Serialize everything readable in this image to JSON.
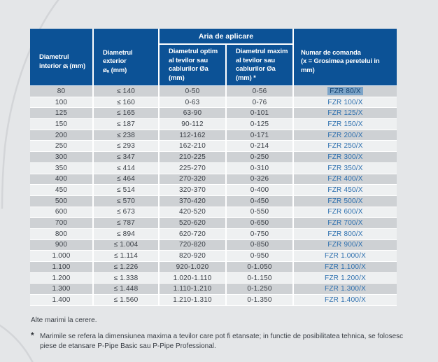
{
  "colors": {
    "page_bg": "#e4e6e8",
    "header_bg": "#0c5296",
    "row_shade": "#ced1d4",
    "row_light": "#eef0f1",
    "link_blue": "#2d6fae",
    "sel_bg": "#7ca4c8",
    "sel_text": "#12406e",
    "body_text": "#3a3f46",
    "curve": "#d3d5d8"
  },
  "table": {
    "headers": {
      "span_label": "Aria de aplicare",
      "inner_diameter": {
        "lines": [
          "Diametrul",
          "interior øᵢ (mm)"
        ]
      },
      "outer_diameter": {
        "lines": [
          "Diametrul",
          "exterior",
          "øₐ (mm)"
        ]
      },
      "optimal_diameter": {
        "lines": [
          "Diametrul optim",
          "al tevilor sau",
          "cablurilor Øa",
          "(mm)"
        ]
      },
      "maximal_diameter": {
        "lines": [
          "Diametrul maxim",
          "al tevilor sau",
          "cablurilor Øa",
          "(mm) *"
        ]
      },
      "order_number": {
        "lines": [
          "Numar de comanda",
          "(x = Grosimea peretelui in",
          "mm)"
        ]
      }
    },
    "rows": [
      {
        "inner": "80",
        "outer": "≤ 140",
        "optimal": "0-50",
        "maximal": "0-56",
        "order": "FZR 80/X",
        "selected": true
      },
      {
        "inner": "100",
        "outer": "≤ 160",
        "optimal": "0-63",
        "maximal": "0-76",
        "order": "FZR 100/X"
      },
      {
        "inner": "125",
        "outer": "≤ 165",
        "optimal": "63-90",
        "maximal": "0-101",
        "order": "FZR 125/X"
      },
      {
        "inner": "150",
        "outer": "≤ 187",
        "optimal": "90-112",
        "maximal": "0-125",
        "order": "FZR 150/X"
      },
      {
        "inner": "200",
        "outer": "≤ 238",
        "optimal": "112-162",
        "maximal": "0-171",
        "order": "FZR 200/X"
      },
      {
        "inner": "250",
        "outer": "≤ 293",
        "optimal": "162-210",
        "maximal": "0-214",
        "order": "FZR 250/X"
      },
      {
        "inner": "300",
        "outer": "≤ 347",
        "optimal": "210-225",
        "maximal": "0-250",
        "order": "FZR 300/X"
      },
      {
        "inner": "350",
        "outer": "≤ 414",
        "optimal": "225-270",
        "maximal": "0-310",
        "order": "FZR 350/X"
      },
      {
        "inner": "400",
        "outer": "≤ 464",
        "optimal": "270-320",
        "maximal": "0-326",
        "order": "FZR 400/X"
      },
      {
        "inner": "450",
        "outer": "≤ 514",
        "optimal": "320-370",
        "maximal": "0-400",
        "order": "FZR 450/X"
      },
      {
        "inner": "500",
        "outer": "≤ 570",
        "optimal": "370-420",
        "maximal": "0-450",
        "order": "FZR 500/X"
      },
      {
        "inner": "600",
        "outer": "≤ 673",
        "optimal": "420-520",
        "maximal": "0-550",
        "order": "FZR 600/X"
      },
      {
        "inner": "700",
        "outer": "≤ 787",
        "optimal": "520-620",
        "maximal": "0-650",
        "order": "FZR 700/X"
      },
      {
        "inner": "800",
        "outer": "≤ 894",
        "optimal": "620-720",
        "maximal": "0-750",
        "order": "FZR 800/X"
      },
      {
        "inner": "900",
        "outer": "≤ 1.004",
        "optimal": "720-820",
        "maximal": "0-850",
        "order": "FZR 900/X"
      },
      {
        "inner": "1.000",
        "outer": "≤ 1.114",
        "optimal": "820-920",
        "maximal": "0-950",
        "order": "FZR 1.000/X"
      },
      {
        "inner": "1.100",
        "outer": "≤ 1.226",
        "optimal": "920-1.020",
        "maximal": "0-1.050",
        "order": "FZR 1.100/X"
      },
      {
        "inner": "1.200",
        "outer": "≤ 1.338",
        "optimal": "1.020-1.110",
        "maximal": "0-1.150",
        "order": "FZR 1.200/X"
      },
      {
        "inner": "1.300",
        "outer": "≤ 1.448",
        "optimal": "1.110-1.210",
        "maximal": "0-1.250",
        "order": "FZR 1.300/X"
      },
      {
        "inner": "1.400",
        "outer": "≤ 1.560",
        "optimal": "1.210-1.310",
        "maximal": "0-1.350",
        "order": "FZR 1.400/X"
      }
    ]
  },
  "footnotes": {
    "other_sizes": "Alte marimi la cerere.",
    "symbol": "*",
    "line1": "Marimile se refera la dimensiunea maxima a tevilor care pot fi etansate; in functie de posibilitatea tehnica, se folosesc",
    "line2": "piese de etansare P-Pipe Basic sau P-Pipe Professional."
  }
}
